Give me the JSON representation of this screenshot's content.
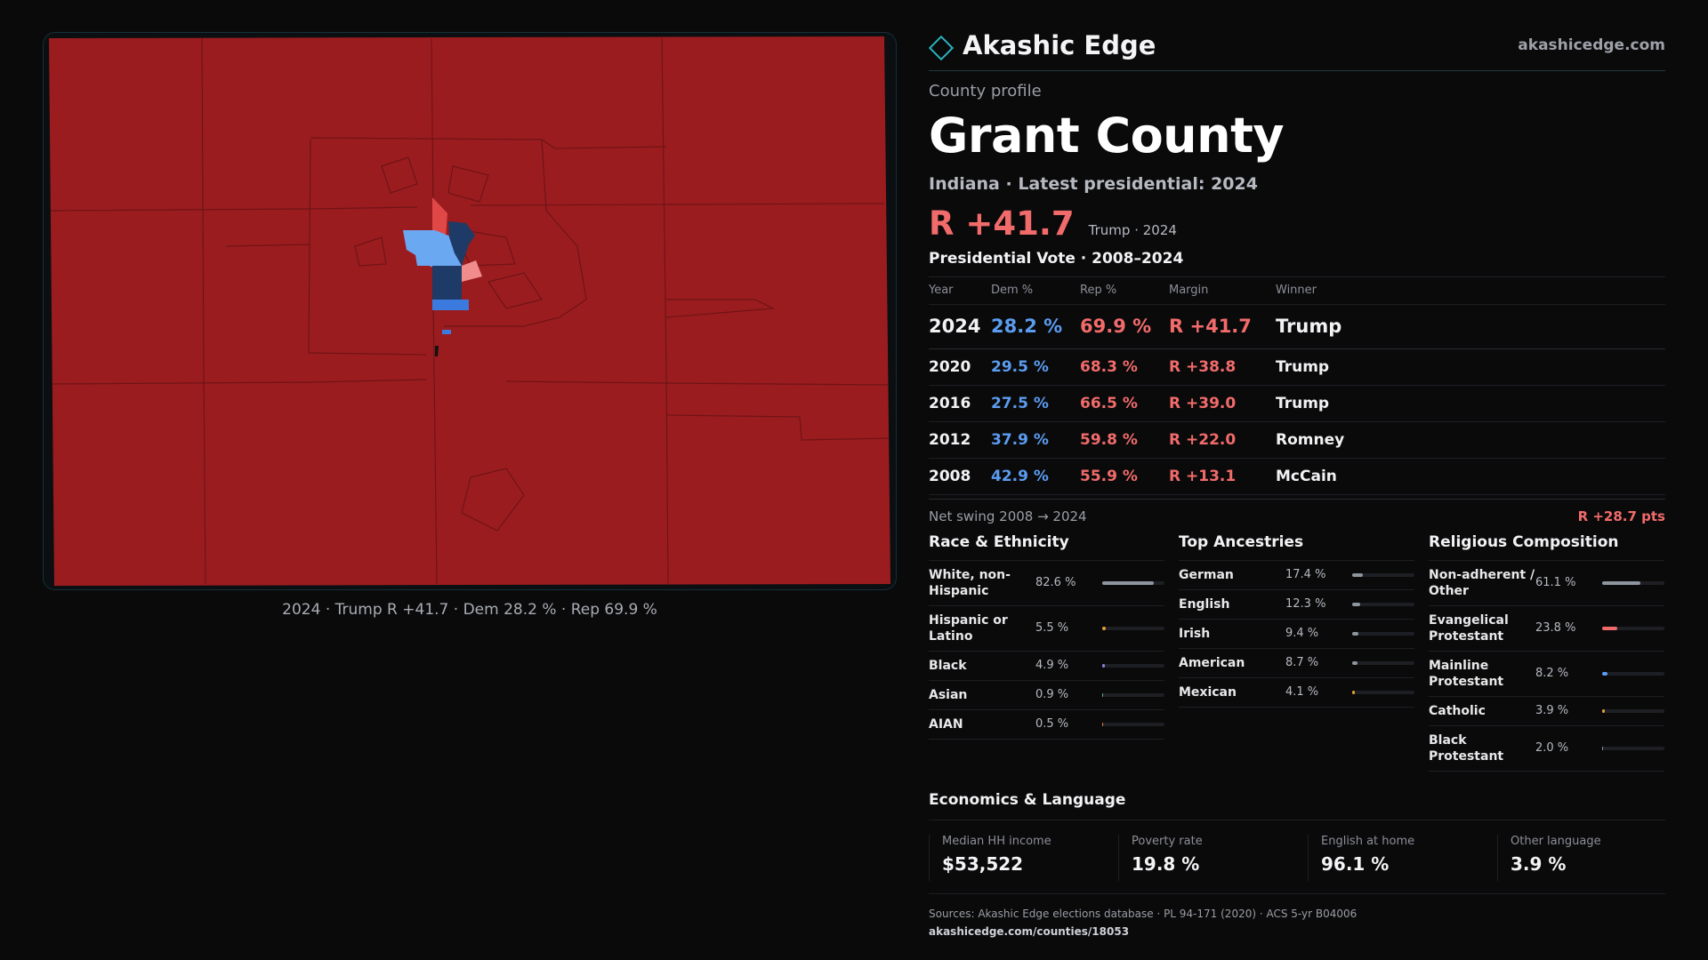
{
  "brand": {
    "name": "Akashic Edge",
    "url": "akashicedge.com",
    "logo_icon": "diamond-outline-icon"
  },
  "profile": {
    "kicker": "County profile",
    "title": "Grant County",
    "subtitle": "Indiana · Latest presidential: 2024",
    "headline_margin": "R +41.7",
    "headline_note": "Trump · 2024"
  },
  "map": {
    "caption": "2024 · Trump R +41.7 · Dem 28.2 % · Rep 69.9 %",
    "colors": {
      "base_rep": "#9b1c1f",
      "strong_dem": "#1e3a66",
      "lean_dem": "#6aa8f2",
      "dem": "#3b7be0",
      "lean_rep": "#f08c8c",
      "rep": "#e04848"
    }
  },
  "vote": {
    "title": "Presidential Vote · 2008–2024",
    "headers": {
      "year": "Year",
      "dem": "Dem %",
      "rep": "Rep %",
      "margin": "Margin",
      "winner": "Winner"
    },
    "rows": [
      {
        "year": "2024",
        "dem": "28.2 %",
        "rep": "69.9 %",
        "margin": "R +41.7",
        "winner": "Trump"
      },
      {
        "year": "2020",
        "dem": "29.5 %",
        "rep": "68.3 %",
        "margin": "R +38.8",
        "winner": "Trump"
      },
      {
        "year": "2016",
        "dem": "27.5 %",
        "rep": "66.5 %",
        "margin": "R +39.0",
        "winner": "Trump"
      },
      {
        "year": "2012",
        "dem": "37.9 %",
        "rep": "59.8 %",
        "margin": "R +22.0",
        "winner": "Romney"
      },
      {
        "year": "2008",
        "dem": "42.9 %",
        "rep": "55.9 %",
        "margin": "R +13.1",
        "winner": "McCain"
      }
    ],
    "swing_label": "Net swing 2008 → 2024",
    "swing_value": "R +28.7 pts"
  },
  "race": {
    "title": "Race & Ethnicity",
    "items": [
      {
        "label": "White, non-Hispanic",
        "value": "82.6 %",
        "share": 0.826,
        "color": "#8e959e"
      },
      {
        "label": "Hispanic or Latino",
        "value": "5.5 %",
        "share": 0.055,
        "color": "#e0a030"
      },
      {
        "label": "Black",
        "value": "4.9 %",
        "share": 0.049,
        "color": "#8a7ee0"
      },
      {
        "label": "Asian",
        "value": "0.9 %",
        "share": 0.009,
        "color": "#4fb0a0"
      },
      {
        "label": "AIAN",
        "value": "0.5 %",
        "share": 0.005,
        "color": "#e08040"
      }
    ]
  },
  "ancestry": {
    "title": "Top Ancestries",
    "items": [
      {
        "label": "German",
        "value": "17.4 %",
        "share": 0.174,
        "color": "#8e959e"
      },
      {
        "label": "English",
        "value": "12.3 %",
        "share": 0.123,
        "color": "#8e959e"
      },
      {
        "label": "Irish",
        "value": "9.4 %",
        "share": 0.094,
        "color": "#8e959e"
      },
      {
        "label": "American",
        "value": "8.7 %",
        "share": 0.087,
        "color": "#8e959e"
      },
      {
        "label": "Mexican",
        "value": "4.1 %",
        "share": 0.041,
        "color": "#e0a030"
      }
    ]
  },
  "religion": {
    "title": "Religious Composition",
    "items": [
      {
        "label": "Non-adherent / Other",
        "value": "61.1 %",
        "share": 0.611,
        "color": "#8e959e"
      },
      {
        "label": "Evangelical Protestant",
        "value": "23.8 %",
        "share": 0.238,
        "color": "#f06a6a"
      },
      {
        "label": "Mainline Protestant",
        "value": "8.2 %",
        "share": 0.082,
        "color": "#5b9cf0"
      },
      {
        "label": "Catholic",
        "value": "3.9 %",
        "share": 0.039,
        "color": "#e0a030"
      },
      {
        "label": "Black Protestant",
        "value": "2.0 %",
        "share": 0.02,
        "color": "#8e959e"
      }
    ]
  },
  "economics": {
    "title": "Economics & Language",
    "items": [
      {
        "label": "Median HH income",
        "value": "$53,522"
      },
      {
        "label": "Poverty rate",
        "value": "19.8 %"
      },
      {
        "label": "English at home",
        "value": "96.1 %"
      },
      {
        "label": "Other language",
        "value": "3.9 %"
      }
    ]
  },
  "sources": {
    "text": "Sources: Akashic Edge elections database · PL 94-171 (2020) · ACS 5-yr B04006",
    "link": "akashicedge.com/counties/18053"
  }
}
